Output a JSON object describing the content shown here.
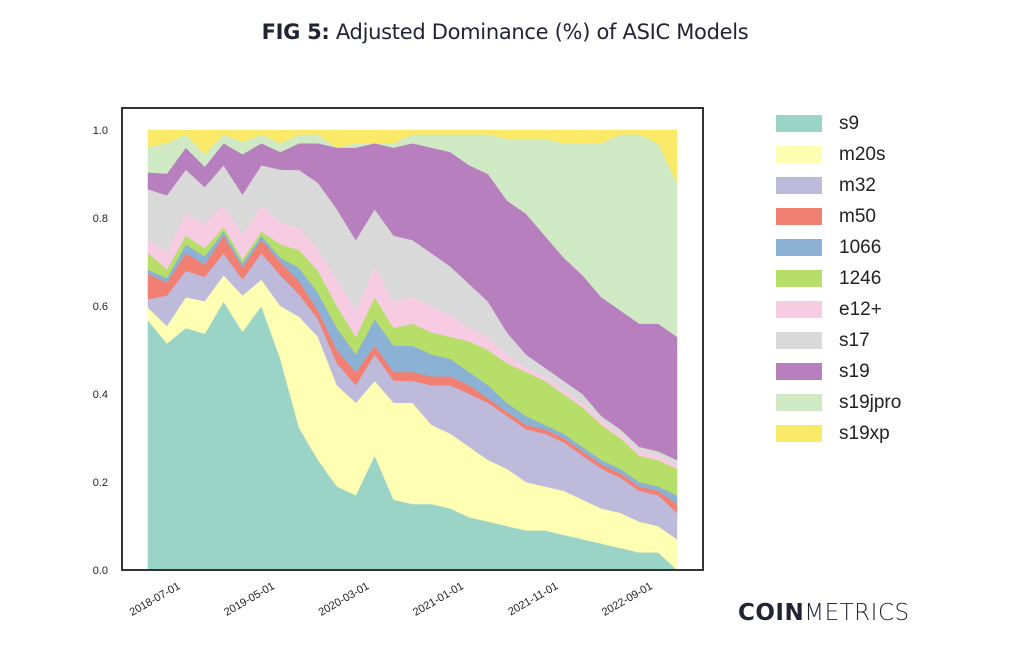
{
  "title": {
    "bold": "FIG 5:",
    "rest": " Adjusted Dominance (%) of ASIC Models"
  },
  "logo": {
    "bold": "COIN",
    "light": "METRICS"
  },
  "chart_data": {
    "type": "area",
    "stacked": true,
    "title": "FIG 5: Adjusted Dominance (%) of ASIC Models",
    "xlabel": "",
    "ylabel": "",
    "ylim": [
      0,
      1.0
    ],
    "yticks": [
      "0.0",
      "0.2",
      "0.4",
      "0.6",
      "0.8",
      "1.0"
    ],
    "xticks": [
      "2018-07-01",
      "2019-05-01",
      "2020-03-01",
      "2021-01-01",
      "2021-11-01",
      "2022-09-01"
    ],
    "xrange": [
      "2018-05-01",
      "2023-01-01"
    ],
    "x": [
      "2018-05",
      "2018-07",
      "2018-09",
      "2018-11",
      "2019-01",
      "2019-03",
      "2019-05",
      "2019-07",
      "2019-09",
      "2019-11",
      "2020-01",
      "2020-03",
      "2020-05",
      "2020-07",
      "2020-09",
      "2020-11",
      "2021-01",
      "2021-03",
      "2021-05",
      "2021-07",
      "2021-09",
      "2021-11",
      "2022-01",
      "2022-03",
      "2022-05",
      "2022-07",
      "2022-09",
      "2022-11",
      "2023-01"
    ],
    "legend": "right",
    "grid": false,
    "series": [
      {
        "name": "s9",
        "color": "#9ad4c6",
        "values": [
          0.59,
          0.52,
          0.55,
          0.58,
          0.61,
          0.59,
          0.6,
          0.48,
          0.32,
          0.25,
          0.19,
          0.17,
          0.26,
          0.16,
          0.15,
          0.15,
          0.14,
          0.12,
          0.11,
          0.1,
          0.09,
          0.09,
          0.08,
          0.07,
          0.06,
          0.05,
          0.04,
          0.04,
          0.0
        ]
      },
      {
        "name": "m20s",
        "color": "#feffb3",
        "values": [
          0.03,
          0.04,
          0.07,
          0.08,
          0.06,
          0.09,
          0.06,
          0.12,
          0.25,
          0.28,
          0.23,
          0.21,
          0.17,
          0.22,
          0.23,
          0.18,
          0.17,
          0.16,
          0.14,
          0.13,
          0.11,
          0.1,
          0.1,
          0.09,
          0.08,
          0.08,
          0.07,
          0.06,
          0.07
        ]
      },
      {
        "name": "m32",
        "color": "#bebadb",
        "values": [
          0.02,
          0.07,
          0.06,
          0.06,
          0.05,
          0.04,
          0.06,
          0.07,
          0.05,
          0.04,
          0.05,
          0.04,
          0.06,
          0.05,
          0.05,
          0.09,
          0.11,
          0.12,
          0.13,
          0.12,
          0.12,
          0.12,
          0.11,
          0.1,
          0.09,
          0.08,
          0.07,
          0.07,
          0.06
        ]
      },
      {
        "name": "m50",
        "color": "#f28072",
        "values": [
          0.06,
          0.03,
          0.04,
          0.03,
          0.04,
          0.03,
          0.03,
          0.03,
          0.03,
          0.02,
          0.03,
          0.03,
          0.02,
          0.02,
          0.02,
          0.02,
          0.02,
          0.02,
          0.01,
          0.01,
          0.01,
          0.01,
          0.01,
          0.01,
          0.01,
          0.01,
          0.01,
          0.01,
          0.02
        ]
      },
      {
        "name": "1066",
        "color": "#8bb2d4",
        "values": [
          0.01,
          0.01,
          0.02,
          0.02,
          0.01,
          0.01,
          0.01,
          0.01,
          0.03,
          0.04,
          0.05,
          0.04,
          0.06,
          0.06,
          0.06,
          0.05,
          0.04,
          0.03,
          0.03,
          0.02,
          0.02,
          0.01,
          0.01,
          0.01,
          0.01,
          0.01,
          0.01,
          0.01,
          0.02
        ]
      },
      {
        "name": "1246",
        "color": "#b6de69",
        "values": [
          0.04,
          0.02,
          0.02,
          0.02,
          0.01,
          0.01,
          0.01,
          0.03,
          0.04,
          0.05,
          0.05,
          0.04,
          0.05,
          0.04,
          0.05,
          0.05,
          0.05,
          0.07,
          0.08,
          0.09,
          0.1,
          0.1,
          0.09,
          0.09,
          0.08,
          0.07,
          0.06,
          0.06,
          0.06
        ]
      },
      {
        "name": "e12+",
        "color": "#f7cce3",
        "values": [
          0.03,
          0.04,
          0.05,
          0.06,
          0.05,
          0.06,
          0.06,
          0.05,
          0.05,
          0.05,
          0.06,
          0.06,
          0.07,
          0.06,
          0.06,
          0.06,
          0.05,
          0.03,
          0.03,
          0.02,
          0.01,
          0.01,
          0.01,
          0.01,
          0.01,
          0.01,
          0.01,
          0.01,
          0.01
        ]
      },
      {
        "name": "s17",
        "color": "#d9d9d9",
        "values": [
          0.12,
          0.13,
          0.1,
          0.09,
          0.09,
          0.1,
          0.09,
          0.12,
          0.13,
          0.15,
          0.16,
          0.16,
          0.13,
          0.15,
          0.13,
          0.12,
          0.11,
          0.1,
          0.08,
          0.05,
          0.03,
          0.02,
          0.02,
          0.02,
          0.01,
          0.01,
          0.01,
          0.01,
          0.01
        ]
      },
      {
        "name": "s19",
        "color": "#b77fbd",
        "values": [
          0.04,
          0.05,
          0.05,
          0.05,
          0.05,
          0.1,
          0.05,
          0.04,
          0.06,
          0.09,
          0.14,
          0.21,
          0.15,
          0.2,
          0.22,
          0.24,
          0.26,
          0.27,
          0.29,
          0.3,
          0.32,
          0.3,
          0.28,
          0.27,
          0.27,
          0.27,
          0.28,
          0.29,
          0.28
        ]
      },
      {
        "name": "s19jpro",
        "color": "#cfe9c5",
        "values": [
          0.06,
          0.07,
          0.03,
          0.03,
          0.02,
          0.03,
          0.02,
          0.02,
          0.02,
          0.02,
          0.0,
          0.01,
          0.0,
          0.01,
          0.02,
          0.03,
          0.04,
          0.07,
          0.09,
          0.14,
          0.17,
          0.22,
          0.26,
          0.3,
          0.35,
          0.4,
          0.43,
          0.41,
          0.35
        ]
      },
      {
        "name": "s19xp",
        "color": "#fbe968",
        "values": [
          0.04,
          0.03,
          0.01,
          0.06,
          0.01,
          0.03,
          0.01,
          0.03,
          0.01,
          0.01,
          0.04,
          0.03,
          0.03,
          0.03,
          0.01,
          0.01,
          0.01,
          0.01,
          0.01,
          0.02,
          0.02,
          0.02,
          0.03,
          0.03,
          0.03,
          0.01,
          0.01,
          0.03,
          0.12
        ]
      }
    ]
  }
}
